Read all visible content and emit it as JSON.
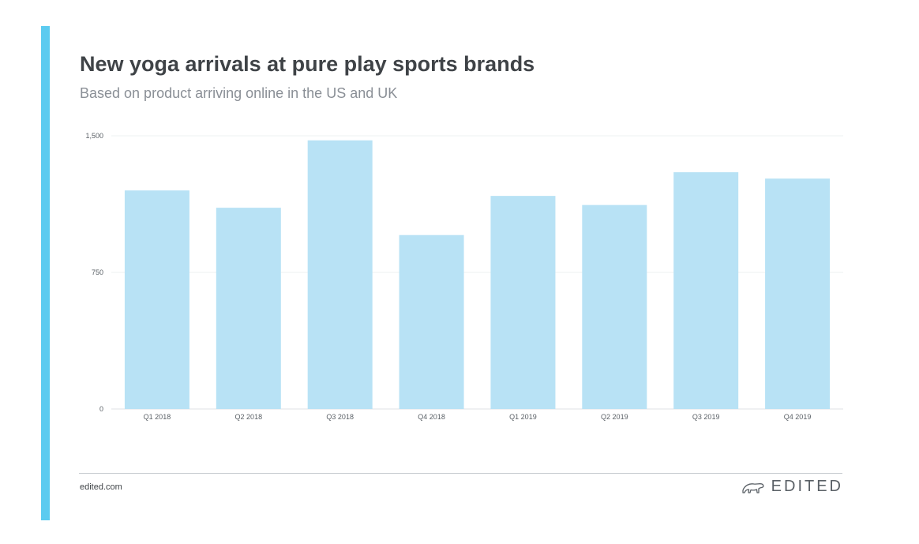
{
  "header": {
    "title": "New yoga arrivals at pure play sports brands",
    "subtitle": "Based on product arriving online in the US and UK"
  },
  "footer": {
    "site": "edited.com",
    "brand": "EDITED",
    "brand_logo_icon": "polar-bear-logo-icon"
  },
  "colors": {
    "accent": "#5ccbf0",
    "bar": "#b8e2f5"
  },
  "chart_data": {
    "type": "bar",
    "categories": [
      "Q1 2018",
      "Q2 2018",
      "Q3 2018",
      "Q4 2018",
      "Q1 2019",
      "Q2 2019",
      "Q3 2019",
      "Q4 2019"
    ],
    "values": [
      1200,
      1105,
      1475,
      955,
      1170,
      1120,
      1300,
      1265
    ],
    "yticks": [
      0,
      750,
      1500
    ],
    "ytick_labels": [
      "0",
      "750",
      "1,500"
    ],
    "ylim": [
      0,
      1500
    ],
    "grid": true,
    "legend": "none"
  }
}
